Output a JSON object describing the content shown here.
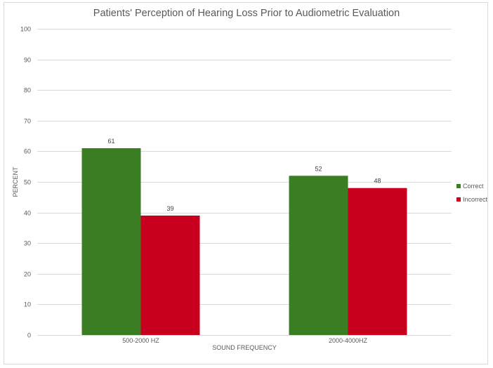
{
  "chart_data": {
    "type": "bar",
    "title": "Patients' Perception of Hearing Loss Prior to Audiometric Evaluation",
    "xlabel": "SOUND FREQUENCY",
    "ylabel": "PERCENT",
    "categories": [
      "500-2000 HZ",
      "2000-4000HZ"
    ],
    "series": [
      {
        "name": "Correct",
        "color": "#3a7d22",
        "values": [
          61,
          52
        ]
      },
      {
        "name": "Incorrect",
        "color": "#c8001e",
        "values": [
          39,
          48
        ]
      }
    ],
    "ylim": [
      0,
      100
    ],
    "yticks": [
      0,
      10,
      20,
      30,
      40,
      50,
      60,
      70,
      80,
      90,
      100
    ],
    "grid": true,
    "legend_position": "right",
    "data_labels": true
  }
}
